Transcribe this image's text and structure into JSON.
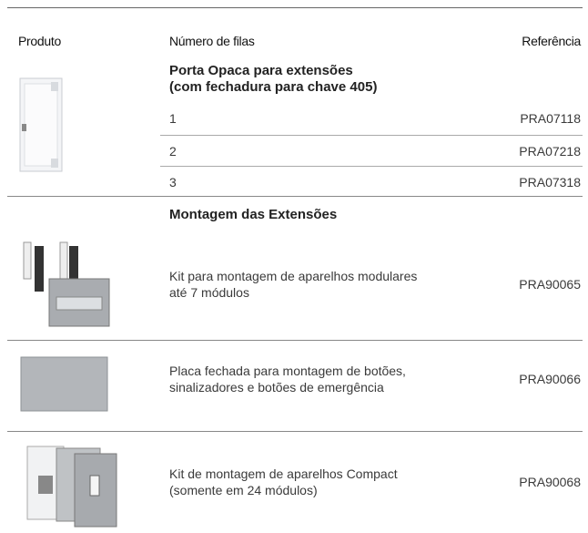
{
  "header": {
    "produto": "Produto",
    "filas": "Número de filas",
    "referencia": "Referência"
  },
  "sections": [
    {
      "title": [
        "Porta Opaca para extensões",
        "(com fechadura para chave 405)"
      ],
      "rows": [
        {
          "description": "1",
          "reference": "PRA07118"
        },
        {
          "description": "2",
          "reference": "PRA07218"
        },
        {
          "description": "3",
          "reference": "PRA07318"
        }
      ]
    },
    {
      "title": [
        "Montagem das Extensões"
      ],
      "rows": [
        {
          "description": [
            "Kit para montagem de aparelhos modulares",
            "até 7 módulos"
          ],
          "reference": "PRA90065"
        },
        {
          "description": [
            "Placa fechada para montagem de botões,",
            "sinalizadores e botões de emergência"
          ],
          "reference": "PRA90066"
        },
        {
          "description": [
            "Kit de montagem de aparelhos Compact",
            "(somente em 24 módulos)"
          ],
          "reference": "PRA90068"
        }
      ]
    }
  ]
}
